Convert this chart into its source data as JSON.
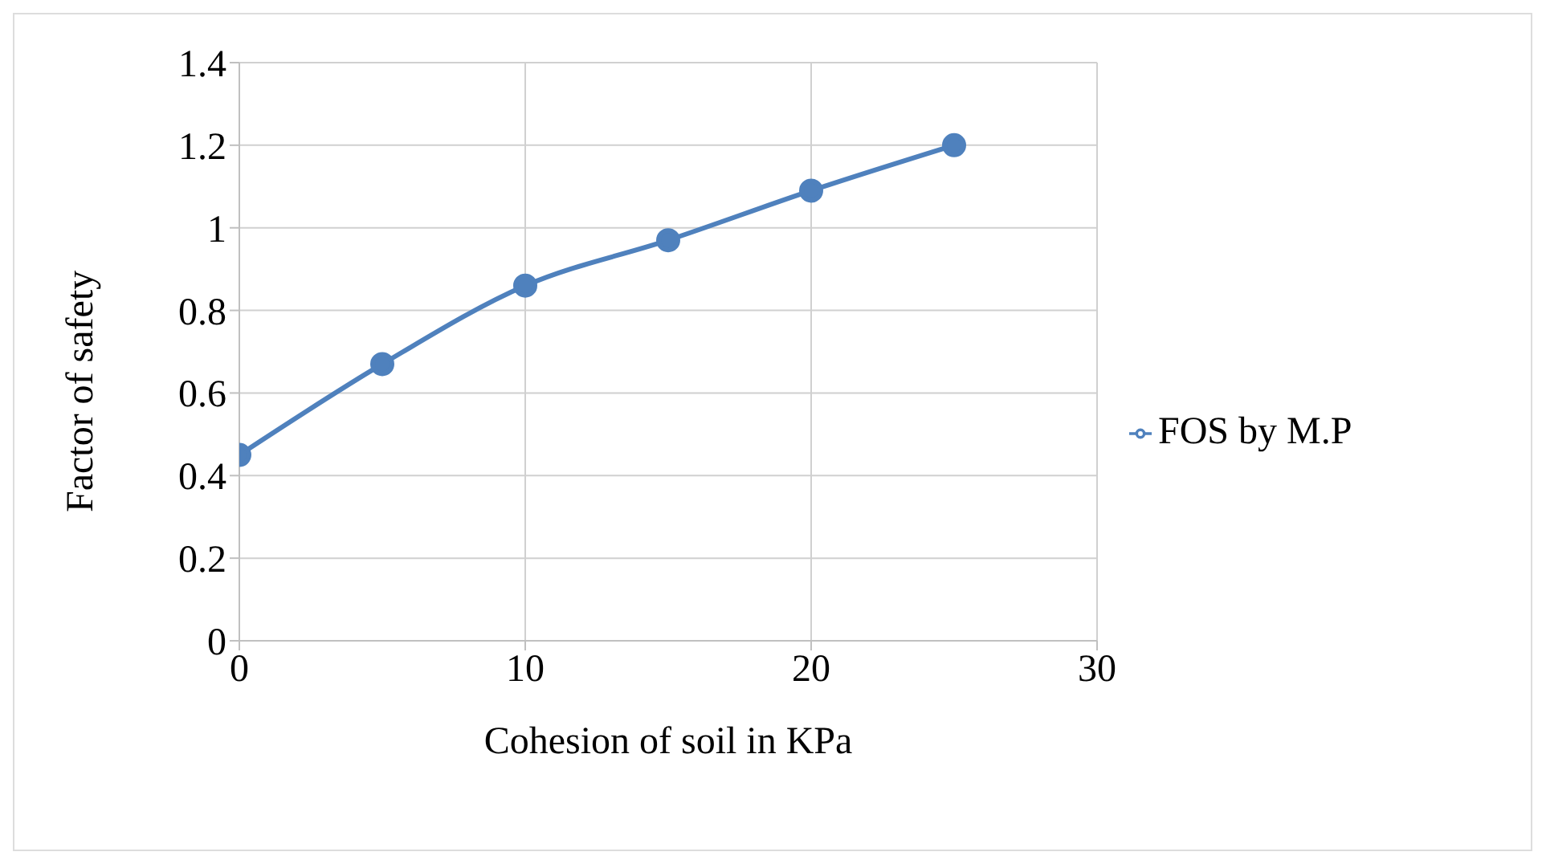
{
  "chart_data": {
    "type": "line",
    "xlabel": "Cohesion of soil in KPa",
    "ylabel": "Factor of safety",
    "x": [
      0,
      5,
      10,
      15,
      20,
      25
    ],
    "series": [
      {
        "name": "FOS by M.P",
        "color": "#4f81bd",
        "values": [
          0.45,
          0.67,
          0.86,
          0.97,
          1.09,
          1.2
        ]
      }
    ],
    "xlim": [
      0,
      30
    ],
    "xticks": [
      0,
      10,
      20,
      30
    ],
    "ylim": [
      0,
      1.4
    ],
    "yticks": [
      0,
      0.2,
      0.4,
      0.6,
      0.8,
      1,
      1.2,
      1.4
    ],
    "grid": true,
    "legend": "right",
    "marker": "circle"
  }
}
